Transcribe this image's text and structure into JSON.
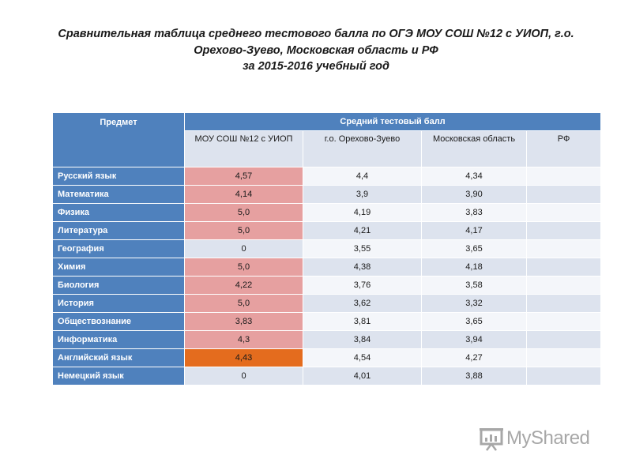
{
  "title": {
    "line1": "Сравнительная таблица среднего тестового балла по ОГЭ МОУ СОШ №12 с УИОП, г.о.",
    "line2": "Орехово-Зуево, Московская область и РФ",
    "line3": "за 2015-2016 учебный год"
  },
  "table": {
    "subject_header": "Предмет",
    "avg_header": "Средний тестовый балл",
    "columns": [
      "МОУ СОШ №12 с УИОП",
      "г.о. Орехово-Зуево",
      "Московская область",
      "РФ"
    ],
    "rows": [
      {
        "subject": "Русский язык",
        "values": [
          "4,57",
          "4,4",
          "4,34",
          ""
        ]
      },
      {
        "subject": "Математика",
        "values": [
          "4,14",
          "3,9",
          "3,90",
          ""
        ]
      },
      {
        "subject": "Физика",
        "values": [
          "5,0",
          "4,19",
          "3,83",
          ""
        ]
      },
      {
        "subject": "Литература",
        "values": [
          "5,0",
          "4,21",
          "4,17",
          ""
        ]
      },
      {
        "subject": "География",
        "values": [
          "0",
          "3,55",
          "3,65",
          ""
        ]
      },
      {
        "subject": "Химия",
        "values": [
          "5,0",
          "4,38",
          "4,18",
          ""
        ]
      },
      {
        "subject": "Биология",
        "values": [
          "4,22",
          "3,76",
          "3,58",
          ""
        ]
      },
      {
        "subject": "История",
        "values": [
          "5,0",
          "3,62",
          "3,32",
          ""
        ]
      },
      {
        "subject": "Обществознание",
        "values": [
          "3,83",
          "3,81",
          "3,65",
          ""
        ]
      },
      {
        "subject": "Информатика",
        "values": [
          "4,3",
          "3,84",
          "3,94",
          ""
        ]
      },
      {
        "subject": "Английский язык",
        "values": [
          "4,43",
          "4,54",
          "4,27",
          ""
        ]
      },
      {
        "subject": "Немецкий язык",
        "values": [
          "0",
          "4,01",
          "3,88",
          ""
        ]
      }
    ]
  },
  "watermark": {
    "text": "MyShared",
    "icon": "presentation-board-icon"
  },
  "colors": {
    "header_blue": "#4f81bd",
    "highlight_red": "#e6a0a0",
    "highlight_orange": "#e46c1e",
    "row_light": "#f4f6fa",
    "row_dark": "#dde3ee"
  }
}
